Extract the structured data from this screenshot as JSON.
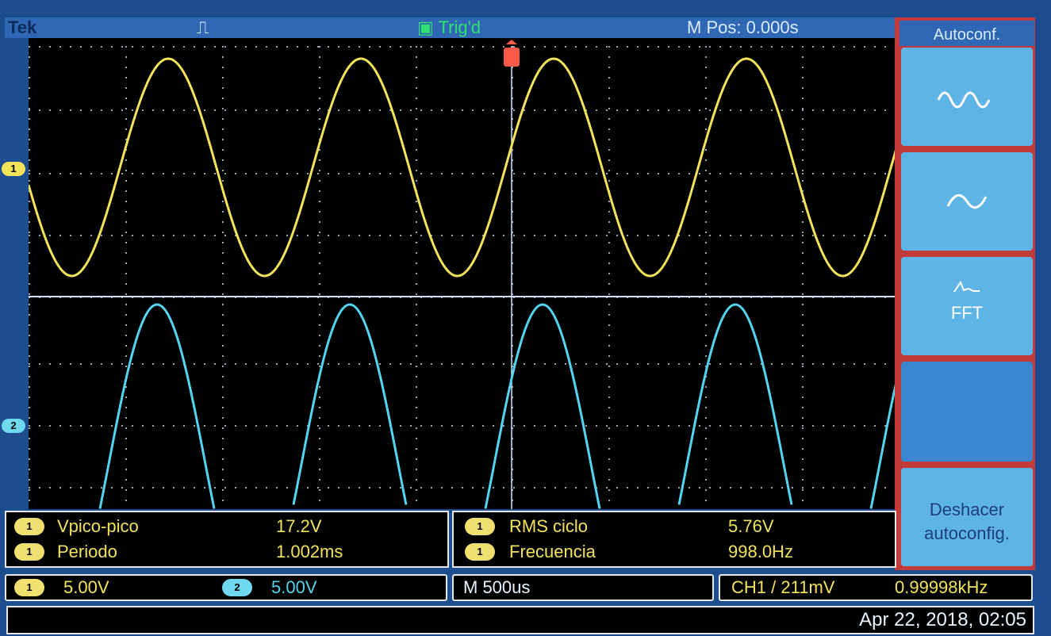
{
  "topbar": {
    "brand": "Tek",
    "trigger_state": "Trig'd",
    "m_pos": "M Pos: 0.000s"
  },
  "channels": [
    {
      "marker": "1",
      "color": "#f2e35a",
      "volts_per_div": "5.00V"
    },
    {
      "marker": "2",
      "color": "#55d4ef",
      "volts_per_div": "5.00V"
    }
  ],
  "menu": {
    "title": "Autoconf.",
    "buttons": [
      {
        "icon": "multi-cycle-sine-icon"
      },
      {
        "icon": "single-cycle-sine-icon"
      },
      {
        "icon": "fft-spectrum-icon",
        "label": "FFT"
      },
      {
        "label": "Deshacer autoconfig."
      }
    ]
  },
  "measurements": [
    {
      "channel": "1",
      "label": "Vpico-pico",
      "value": "17.2V"
    },
    {
      "channel": "1",
      "label": "Periodo",
      "value": "1.002ms"
    },
    {
      "channel": "1",
      "label": "RMS ciclo",
      "value": "5.76V"
    },
    {
      "channel": "1",
      "label": "Frecuencia",
      "value": "998.0Hz"
    }
  ],
  "timebase": "M 500us",
  "trigger": {
    "channel": "CH1",
    "slope_symbol": "/",
    "level": "211mV",
    "frequency": "0.99998kHz"
  },
  "date": "Apr 22, 2018, 02:05",
  "colors": {
    "ch1": "#f2e35a",
    "ch2": "#55d4ef",
    "trigger_marker": "#ff5a4a"
  }
}
